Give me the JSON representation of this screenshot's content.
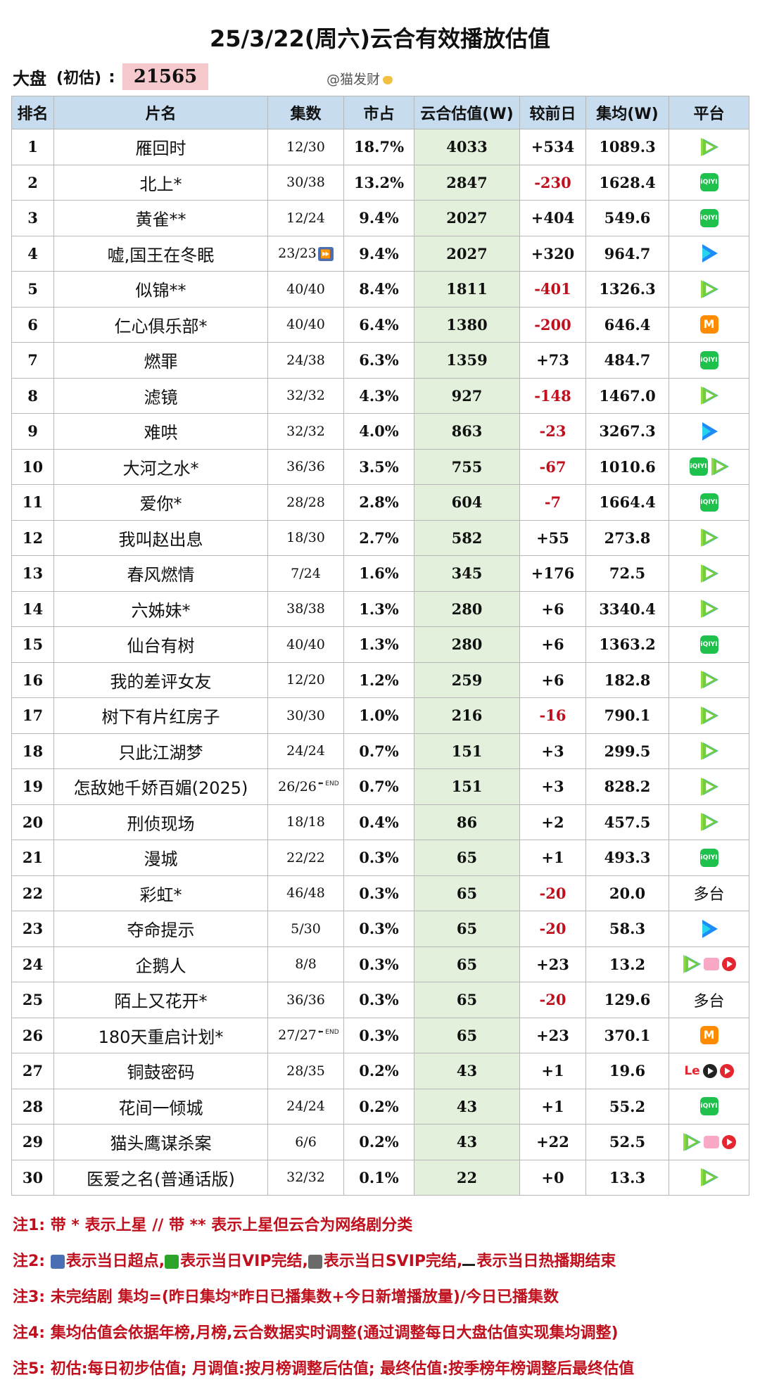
{
  "title": "25/3/22(周六)云合有效播放估值",
  "summary": {
    "label": "大盘",
    "sub": "(初估)",
    "colon": ":",
    "total": "21565"
  },
  "watermark": "@猫发财",
  "headers": [
    "排名",
    "片名",
    "集数",
    "市占",
    "云合估值(W)",
    "较前日",
    "集均(W)",
    "平台"
  ],
  "rows": [
    {
      "rank": "1",
      "title": "雁回时",
      "ep": "12/30",
      "ep_icon": "",
      "share": "18.7%",
      "est": "4033",
      "diff": "+534",
      "avg": "1089.3",
      "platform": [
        "tencent"
      ]
    },
    {
      "rank": "2",
      "title": "北上*",
      "ep": "30/38",
      "ep_icon": "",
      "share": "13.2%",
      "est": "2847",
      "diff": "-230",
      "avg": "1628.4",
      "platform": [
        "iqiyi"
      ]
    },
    {
      "rank": "3",
      "title": "黄雀**",
      "ep": "12/24",
      "ep_icon": "",
      "share": "9.4%",
      "est": "2027",
      "diff": "+404",
      "avg": "549.6",
      "platform": [
        "iqiyi"
      ]
    },
    {
      "rank": "4",
      "title": "嘘,国王在冬眠",
      "ep": "23/23",
      "ep_icon": "superclick",
      "share": "9.4%",
      "est": "2027",
      "diff": "+320",
      "avg": "964.7",
      "platform": [
        "youku"
      ]
    },
    {
      "rank": "5",
      "title": "似锦**",
      "ep": "40/40",
      "ep_icon": "",
      "share": "8.4%",
      "est": "1811",
      "diff": "-401",
      "avg": "1326.3",
      "platform": [
        "tencent"
      ]
    },
    {
      "rank": "6",
      "title": "仁心俱乐部*",
      "ep": "40/40",
      "ep_icon": "",
      "share": "6.4%",
      "est": "1380",
      "diff": "-200",
      "avg": "646.4",
      "platform": [
        "mango"
      ]
    },
    {
      "rank": "7",
      "title": "燃罪",
      "ep": "24/38",
      "ep_icon": "",
      "share": "6.3%",
      "est": "1359",
      "diff": "+73",
      "avg": "484.7",
      "platform": [
        "iqiyi"
      ]
    },
    {
      "rank": "8",
      "title": "滤镜",
      "ep": "32/32",
      "ep_icon": "",
      "share": "4.3%",
      "est": "927",
      "diff": "-148",
      "avg": "1467.0",
      "platform": [
        "tencent"
      ]
    },
    {
      "rank": "9",
      "title": "难哄",
      "ep": "32/32",
      "ep_icon": "",
      "share": "4.0%",
      "est": "863",
      "diff": "-23",
      "avg": "3267.3",
      "platform": [
        "youku"
      ]
    },
    {
      "rank": "10",
      "title": "大河之水*",
      "ep": "36/36",
      "ep_icon": "",
      "share": "3.5%",
      "est": "755",
      "diff": "-67",
      "avg": "1010.6",
      "platform": [
        "iqiyi",
        "tencent"
      ]
    },
    {
      "rank": "11",
      "title": "爱你*",
      "ep": "28/28",
      "ep_icon": "",
      "share": "2.8%",
      "est": "604",
      "diff": "-7",
      "avg": "1664.4",
      "platform": [
        "iqiyi"
      ]
    },
    {
      "rank": "12",
      "title": "我叫赵出息",
      "ep": "18/30",
      "ep_icon": "",
      "share": "2.7%",
      "est": "582",
      "diff": "+55",
      "avg": "273.8",
      "platform": [
        "tencent"
      ]
    },
    {
      "rank": "13",
      "title": "春风燃情",
      "ep": "7/24",
      "ep_icon": "",
      "share": "1.6%",
      "est": "345",
      "diff": "+176",
      "avg": "72.5",
      "platform": [
        "tencent"
      ]
    },
    {
      "rank": "14",
      "title": "六姊妹*",
      "ep": "38/38",
      "ep_icon": "",
      "share": "1.3%",
      "est": "280",
      "diff": "+6",
      "avg": "3340.4",
      "platform": [
        "tencent"
      ]
    },
    {
      "rank": "15",
      "title": "仙台有树",
      "ep": "40/40",
      "ep_icon": "",
      "share": "1.3%",
      "est": "280",
      "diff": "+6",
      "avg": "1363.2",
      "platform": [
        "iqiyi"
      ]
    },
    {
      "rank": "16",
      "title": "我的差评女友",
      "ep": "12/20",
      "ep_icon": "",
      "share": "1.2%",
      "est": "259",
      "diff": "+6",
      "avg": "182.8",
      "platform": [
        "tencent"
      ]
    },
    {
      "rank": "17",
      "title": "树下有片红房子",
      "ep": "30/30",
      "ep_icon": "",
      "share": "1.0%",
      "est": "216",
      "diff": "-16",
      "avg": "790.1",
      "platform": [
        "tencent"
      ]
    },
    {
      "rank": "18",
      "title": "只此江湖梦",
      "ep": "24/24",
      "ep_icon": "",
      "share": "0.7%",
      "est": "151",
      "diff": "+3",
      "avg": "299.5",
      "platform": [
        "tencent"
      ]
    },
    {
      "rank": "19",
      "title": "怎敌她千娇百媚(2025)",
      "ep": "26/26",
      "ep_icon": "end",
      "share": "0.7%",
      "est": "151",
      "diff": "+3",
      "avg": "828.2",
      "platform": [
        "tencent"
      ]
    },
    {
      "rank": "20",
      "title": "刑侦现场",
      "ep": "18/18",
      "ep_icon": "",
      "share": "0.4%",
      "est": "86",
      "diff": "+2",
      "avg": "457.5",
      "platform": [
        "tencent"
      ]
    },
    {
      "rank": "21",
      "title": "漫城",
      "ep": "22/22",
      "ep_icon": "",
      "share": "0.3%",
      "est": "65",
      "diff": "+1",
      "avg": "493.3",
      "platform": [
        "iqiyi"
      ]
    },
    {
      "rank": "22",
      "title": "彩虹*",
      "ep": "46/48",
      "ep_icon": "",
      "share": "0.3%",
      "est": "65",
      "diff": "-20",
      "avg": "20.0",
      "platform": [
        "multi"
      ]
    },
    {
      "rank": "23",
      "title": "夺命提示",
      "ep": "5/30",
      "ep_icon": "",
      "share": "0.3%",
      "est": "65",
      "diff": "-20",
      "avg": "58.3",
      "platform": [
        "youku"
      ]
    },
    {
      "rank": "24",
      "title": "企鹅人",
      "ep": "8/8",
      "ep_icon": "",
      "share": "0.3%",
      "est": "65",
      "diff": "+23",
      "avg": "13.2",
      "platform": [
        "tencent",
        "bilibili",
        "migu"
      ]
    },
    {
      "rank": "25",
      "title": "陌上又花开*",
      "ep": "36/36",
      "ep_icon": "",
      "share": "0.3%",
      "est": "65",
      "diff": "-20",
      "avg": "129.6",
      "platform": [
        "multi"
      ]
    },
    {
      "rank": "26",
      "title": "180天重启计划*",
      "ep": "27/27",
      "ep_icon": "end",
      "share": "0.3%",
      "est": "65",
      "diff": "+23",
      "avg": "370.1",
      "platform": [
        "mango"
      ]
    },
    {
      "rank": "27",
      "title": "铜鼓密码",
      "ep": "28/35",
      "ep_icon": "",
      "share": "0.2%",
      "est": "43",
      "diff": "+1",
      "avg": "19.6",
      "platform": [
        "letv",
        "dark",
        "migu"
      ]
    },
    {
      "rank": "28",
      "title": "花间一倾城",
      "ep": "24/24",
      "ep_icon": "",
      "share": "0.2%",
      "est": "43",
      "diff": "+1",
      "avg": "55.2",
      "platform": [
        "iqiyi"
      ]
    },
    {
      "rank": "29",
      "title": "猫头鹰谋杀案",
      "ep": "6/6",
      "ep_icon": "",
      "share": "0.2%",
      "est": "43",
      "diff": "+22",
      "avg": "52.5",
      "platform": [
        "tencent",
        "bilibili",
        "migu"
      ]
    },
    {
      "rank": "30",
      "title": "医爱之名(普通话版)",
      "ep": "32/32",
      "ep_icon": "",
      "share": "0.1%",
      "est": "22",
      "diff": "+0",
      "avg": "13.3",
      "platform": [
        "tencent"
      ]
    }
  ],
  "platform_text": {
    "multi": "多台",
    "iqiyi": "iQIYI",
    "mango": "M",
    "letv": "Le",
    "sc": "⏩",
    "end": "⬅ END"
  },
  "notes": {
    "n1": "注1: 带 * 表示上星 // 带 ** 表示上星但云合为网络剧分类",
    "n2_prefix": "注2: ",
    "n2_a": "表示当日超点,",
    "n2_b": "表示当日VIP完结,",
    "n2_c": "表示当日SVIP完结,",
    "n2_d": "表示当日热播期结束",
    "n3": "注3: 未完结剧 集均=(昨日集均*昨日已播集数+今日新增播放量)/今日已播集数",
    "n4": "注4: 集均估值会依据年榜,月榜,云合数据实时调整(通过调整每日大盘估值实现集均调整)",
    "n5": "注5: 初估:每日初步估值; 月调值:按月榜调整后估值; 最终估值:按季榜年榜调整后最终估值"
  },
  "colors": {
    "header_bg": "#c7dcee",
    "est_bg": "#e3f1dc",
    "negative": "#c0101e",
    "total_bg": "#f6c9cd",
    "note": "#c0101e"
  }
}
